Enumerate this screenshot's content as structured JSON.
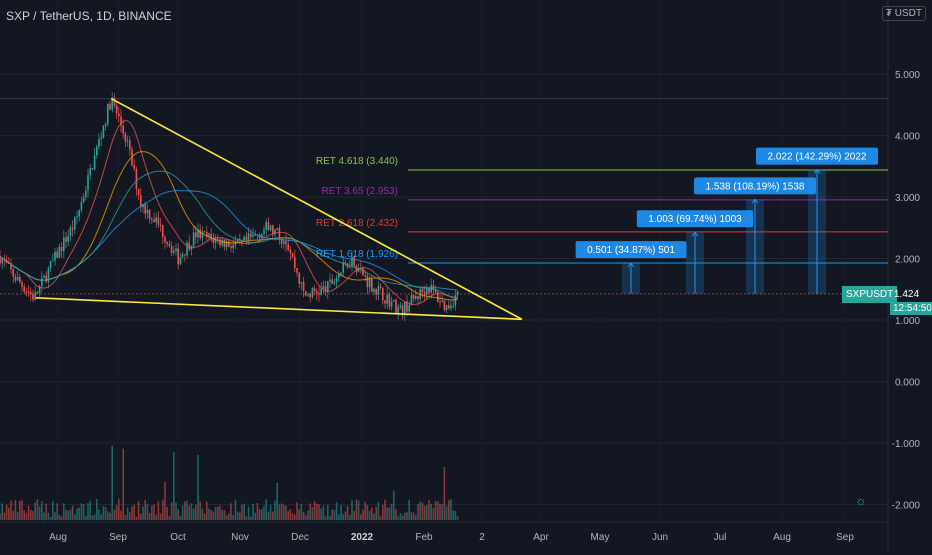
{
  "header": {
    "symbol_line": "SXP / TetherUS, 1D, BINANCE",
    "currency_badge": "USDT",
    "currency_symbol": "₮"
  },
  "price_tag": {
    "label": "SXPUSDT",
    "value": "1.424",
    "countdown": "12:54:50"
  },
  "chart_data": {
    "type": "candlestick",
    "title": "",
    "y_ticks": [
      "5.000",
      "4.000",
      "3.000",
      "2.000",
      "1.000",
      "0.000",
      "-1.000",
      "-2.000"
    ],
    "x_ticks": [
      "Aug",
      "Sep",
      "Oct",
      "Nov",
      "Dec",
      "2022",
      "Feb",
      "2",
      "Apr",
      "May",
      "Jun",
      "Jul",
      "Aug",
      "Sep"
    ],
    "ylim": [
      -2.2,
      6.2
    ],
    "last_price": 1.424,
    "fib_levels": [
      {
        "label": "RET 4.618 (3.440)",
        "value": 3.44,
        "color": "#8bc34a"
      },
      {
        "label": "RET 3.65 (2.953)",
        "value": 2.953,
        "color": "#9c27b0"
      },
      {
        "label": "RET 2.618 (2.432)",
        "value": 2.432,
        "color": "#e53935"
      },
      {
        "label": "RET 1.618 (1.926)",
        "value": 1.926,
        "color": "#2196f3"
      }
    ],
    "targets": [
      {
        "label": "0.501 (34.87%) 501",
        "from": 1.424,
        "to": 1.925
      },
      {
        "label": "1.003 (69.74%) 1003",
        "from": 1.424,
        "to": 2.427
      },
      {
        "label": "1.538 (108.19%) 1538",
        "from": 1.424,
        "to": 2.962
      },
      {
        "label": "2.022 (142.29%) 2022",
        "from": 1.424,
        "to": 3.446
      }
    ],
    "wedge_upper": [
      {
        "x": "2021-08-28",
        "y": 4.6
      },
      {
        "x": "2022-02-20",
        "y": 1.06
      }
    ],
    "wedge_lower": [
      {
        "x": "2021-07-20",
        "y": 1.36
      },
      {
        "x": "2022-02-20",
        "y": 1.06
      }
    ],
    "price_path": [
      {
        "x": "2021-07-01",
        "y": 2.1
      },
      {
        "x": "2021-07-10",
        "y": 1.7
      },
      {
        "x": "2021-07-20",
        "y": 1.36
      },
      {
        "x": "2021-08-01",
        "y": 2.1
      },
      {
        "x": "2021-08-10",
        "y": 2.6
      },
      {
        "x": "2021-08-20",
        "y": 3.7
      },
      {
        "x": "2021-08-28",
        "y": 4.6
      },
      {
        "x": "2021-09-05",
        "y": 3.9
      },
      {
        "x": "2021-09-12",
        "y": 2.9
      },
      {
        "x": "2021-09-20",
        "y": 2.6
      },
      {
        "x": "2021-10-01",
        "y": 2.0
      },
      {
        "x": "2021-10-10",
        "y": 2.4
      },
      {
        "x": "2021-10-20",
        "y": 2.3
      },
      {
        "x": "2021-11-01",
        "y": 2.2
      },
      {
        "x": "2021-11-15",
        "y": 2.5
      },
      {
        "x": "2021-11-25",
        "y": 2.3
      },
      {
        "x": "2021-12-04",
        "y": 1.4
      },
      {
        "x": "2021-12-15",
        "y": 1.5
      },
      {
        "x": "2021-12-28",
        "y": 2.0
      },
      {
        "x": "2022-01-06",
        "y": 1.6
      },
      {
        "x": "2022-01-22",
        "y": 1.15
      },
      {
        "x": "2022-02-05",
        "y": 1.55
      },
      {
        "x": "2022-02-14",
        "y": 1.2
      },
      {
        "x": "2022-02-20",
        "y": 1.424
      }
    ],
    "colors": {
      "up": "#26a69a",
      "down": "#ef5350",
      "wedge": "#ffeb3b"
    }
  }
}
